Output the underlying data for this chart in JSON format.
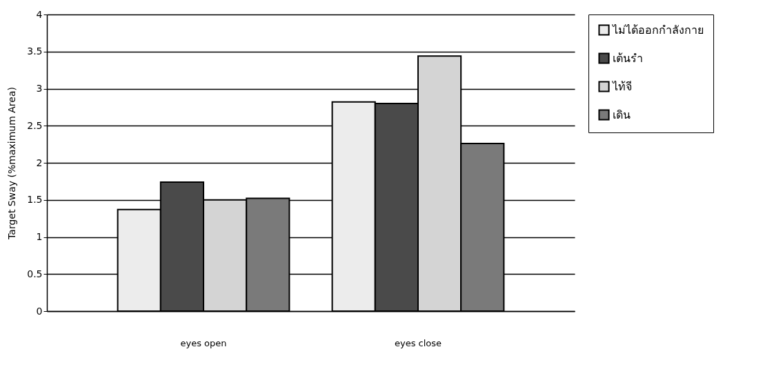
{
  "chart_data": {
    "type": "bar",
    "ylabel": "Target Sway  (%maximum Area)",
    "categories": [
      "eyes open",
      "eyes close"
    ],
    "series": [
      {
        "name": "ไม่ได้ออกกำลังกาย",
        "color": "#ececec",
        "values": [
          1.37,
          2.82
        ]
      },
      {
        "name": "เต้นรำ",
        "color": "#4a4a4a",
        "values": [
          1.74,
          2.8
        ]
      },
      {
        "name": "ไท้จี",
        "color": "#d4d4d4",
        "values": [
          1.5,
          3.44
        ]
      },
      {
        "name": "เดิน",
        "color": "#7a7a7a",
        "values": [
          1.52,
          2.26
        ]
      }
    ],
    "ylim": [
      0,
      4
    ],
    "yticks": [
      0,
      0.5,
      1,
      1.5,
      2,
      2.5,
      3,
      3.5,
      4
    ],
    "grid": "y",
    "legend": "right"
  }
}
